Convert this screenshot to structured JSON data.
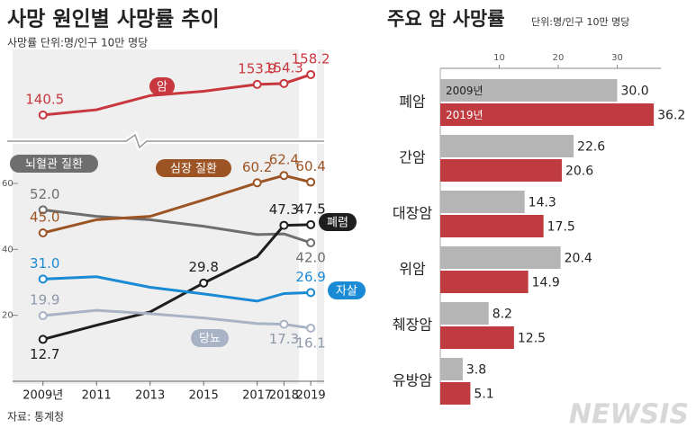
{
  "chart_data": [
    {
      "type": "line",
      "title": "사망 원인별 사망률 추이",
      "subtitle": "사망률 단위:명/인구 10만 명당",
      "x": [
        2009,
        2011,
        2013,
        2015,
        2017,
        2018,
        2019
      ],
      "xlim": [
        2008,
        2019.5
      ],
      "xticks": [
        {
          "value": 2009,
          "label": "2009년"
        },
        2011,
        2013,
        2015,
        2017,
        2018,
        2019
      ],
      "ylim": [
        0,
        72
      ],
      "yticks": [
        20,
        40,
        60
      ],
      "y2lim": [
        131.8,
        169.2
      ],
      "series": [
        {
          "name": "암",
          "color": "#c8373e",
          "axis": "y2",
          "values": [
            140.5,
            142.8,
            149,
            150.9,
            153.9,
            154.3,
            158.2
          ],
          "value_labels": [
            "140.5",
            null,
            null,
            null,
            "153.9",
            "154.3",
            "158.2"
          ]
        },
        {
          "name": "뇌혈관 질환",
          "color": "#6e6e6e",
          "values": [
            52.0,
            50,
            49,
            47,
            44.5,
            44.7,
            42.0
          ],
          "value_labels": [
            "52.0",
            null,
            null,
            null,
            null,
            null,
            "42.0"
          ]
        },
        {
          "name": "심장 질환",
          "color": "#9c5424",
          "values": [
            45.0,
            49,
            50,
            55,
            60.2,
            62.4,
            60.4
          ],
          "value_labels": [
            "45.0",
            null,
            null,
            null,
            "60.2",
            "62.4",
            "60.4"
          ]
        },
        {
          "name": "폐렴",
          "color": "#1e1e1e",
          "values": [
            12.7,
            17,
            21,
            29.8,
            37.8,
            47.3,
            47.5
          ],
          "value_labels": [
            "12.7",
            null,
            null,
            "29.8",
            null,
            "47.3",
            "47.5"
          ]
        },
        {
          "name": "자살",
          "color": "#1a8ad4",
          "values": [
            31.0,
            31.7,
            28.5,
            26.5,
            24.3,
            26.6,
            26.9
          ],
          "value_labels": [
            "31.0",
            null,
            null,
            null,
            null,
            null,
            "26.9"
          ]
        },
        {
          "name": "당뇨",
          "color": "#a9b3c6",
          "values": [
            19.9,
            21.5,
            20.5,
            19.2,
            17.5,
            17.3,
            16.1
          ],
          "value_labels": [
            "19.9",
            null,
            null,
            null,
            null,
            "17.3",
            "16.1"
          ]
        }
      ]
    },
    {
      "type": "hbar",
      "title": "주요 암 사망률",
      "subtitle": "단위:명/인구 10만 명당",
      "categories": [
        "폐암",
        "간암",
        "대장암",
        "위암",
        "췌장암",
        "유방암"
      ],
      "xlim": [
        0,
        37.4
      ],
      "xticks": [
        10,
        20,
        30
      ],
      "series": [
        {
          "name": "2009년",
          "color": "#b5b5b5",
          "values": [
            30.0,
            22.6,
            14.3,
            20.4,
            8.2,
            3.8
          ],
          "value_labels": [
            "30.0",
            "22.6",
            "14.3",
            "20.4",
            "8.2",
            "3.8"
          ]
        },
        {
          "name": "2019년",
          "color": "#bf3b40",
          "values": [
            36.2,
            20.6,
            17.5,
            14.9,
            12.5,
            5.1
          ],
          "value_labels": [
            "36.2",
            "20.6",
            "17.5",
            "14.9",
            "12.5",
            "5.1"
          ]
        }
      ]
    }
  ],
  "source": "자료: 통계청",
  "watermark": "NEWSIS"
}
